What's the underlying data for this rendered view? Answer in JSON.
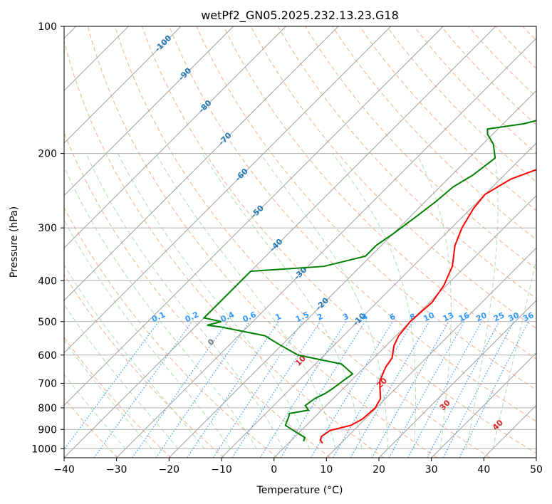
{
  "chart_data": {
    "type": "skew-t",
    "title": "wetPf2_GN05.2025.232.13.23.G18",
    "xlabel": "Temperature (°C)",
    "ylabel": "Pressure (hPa)",
    "xlim": [
      -40,
      50
    ],
    "ylim": [
      1050,
      100
    ],
    "x_ticks": [
      -40,
      -30,
      -20,
      -10,
      0,
      10,
      20,
      30,
      40,
      50
    ],
    "y_ticks": [
      1000,
      900,
      800,
      700,
      600,
      500,
      400,
      300,
      200,
      100
    ],
    "grid": true,
    "colors": {
      "temperature": "#ff0000",
      "dewpoint": "#008000",
      "dry_adiabat": "#f4a582",
      "moist_adiabat": "#a6d9a6",
      "isotherm": "#a0a0a0",
      "mixing_ratio": "#3399ff",
      "isotherm_label_color": "#1f77b4",
      "moist_label_color": "#d62728"
    },
    "temperature_series": {
      "name": "Temperature",
      "points": [
        [
          6.5,
          970
        ],
        [
          5.5,
          955
        ],
        [
          5,
          935
        ],
        [
          5.5,
          905
        ],
        [
          8.5,
          880
        ],
        [
          9.5,
          850
        ],
        [
          9.8,
          800
        ],
        [
          9,
          760
        ],
        [
          7,
          720
        ],
        [
          5.5,
          690
        ],
        [
          4,
          640
        ],
        [
          3.5,
          610
        ],
        [
          1.5,
          570
        ],
        [
          0.5,
          540
        ],
        [
          0,
          500
        ],
        [
          0.5,
          450
        ],
        [
          -0.5,
          410
        ],
        [
          -2.5,
          370
        ],
        [
          -6,
          330
        ],
        [
          -8,
          300
        ],
        [
          -9.5,
          270
        ],
        [
          -10,
          250
        ],
        [
          -8,
          230
        ],
        [
          -4,
          215
        ],
        [
          2,
          200
        ],
        [
          7.5,
          180
        ],
        [
          10.5,
          160
        ],
        [
          13,
          150
        ],
        [
          17,
          140
        ],
        [
          21,
          130
        ],
        [
          25,
          120
        ],
        [
          29,
          110
        ],
        [
          32.5,
          100
        ]
      ]
    },
    "dewpoint_series": {
      "name": "Dewpoint",
      "points": [
        [
          2.5,
          960
        ],
        [
          2,
          940
        ],
        [
          0,
          920
        ],
        [
          -1.5,
          905
        ],
        [
          -4,
          880
        ],
        [
          -4.5,
          860
        ],
        [
          -5,
          840
        ],
        [
          -5.5,
          825
        ],
        [
          -2.5,
          810
        ],
        [
          -4,
          790
        ],
        [
          -3.5,
          760
        ],
        [
          -2.5,
          740
        ],
        [
          -2,
          720
        ],
        [
          -1.5,
          690
        ],
        [
          -1,
          665
        ],
        [
          -5,
          630
        ],
        [
          -15,
          600
        ],
        [
          -20,
          570
        ],
        [
          -25,
          540
        ],
        [
          -35,
          515
        ],
        [
          -38,
          510
        ],
        [
          -36,
          500
        ],
        [
          -40,
          490
        ],
        [
          -40,
          380
        ],
        [
          -27,
          370
        ],
        [
          -21,
          350
        ],
        [
          -21,
          330
        ],
        [
          -20,
          310
        ],
        [
          -19,
          285
        ],
        [
          -18,
          260
        ],
        [
          -17.5,
          240
        ],
        [
          -16,
          225
        ],
        [
          -15,
          205
        ],
        [
          -18,
          190
        ],
        [
          -21,
          180
        ],
        [
          -22,
          175
        ],
        [
          -16,
          170
        ],
        [
          -10,
          160
        ],
        [
          -8,
          150
        ],
        [
          -6,
          140
        ],
        [
          -4,
          130
        ],
        [
          -2,
          120
        ],
        [
          1,
          110
        ],
        [
          3,
          100
        ]
      ]
    },
    "isotherm_labels": [
      "-100",
      "-90",
      "-80",
      "-70",
      "-60",
      "-50",
      "-40",
      "-30",
      "-20",
      "-10"
    ],
    "mixing_ratio_labels": [
      "0.1",
      "0.2",
      "0.4",
      "0.6",
      "1",
      "1.5",
      "2",
      "3",
      "4",
      "6",
      "8",
      "10",
      "13",
      "16",
      "20",
      "25",
      "30",
      "36"
    ],
    "moist_adiabat_labels": [
      "0",
      "10",
      "20",
      "30",
      "40"
    ]
  }
}
